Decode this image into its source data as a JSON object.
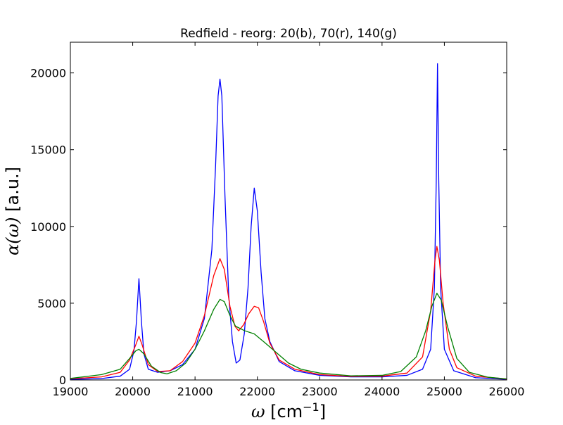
{
  "chart_data": {
    "type": "line",
    "title": "Redfield - reorg: 20(b), 70(r), 140(g)",
    "xlabel": {
      "sym": "ω",
      "unit": " [cm",
      "sup": "−1",
      "close": "]"
    },
    "ylabel": {
      "sym": "α(ω)",
      "unit": " [a.u.]"
    },
    "xlim": [
      19000,
      26000
    ],
    "ylim": [
      0,
      22000
    ],
    "xticks": [
      19000,
      20000,
      21000,
      22000,
      23000,
      24000,
      25000,
      26000
    ],
    "yticks": [
      0,
      5000,
      10000,
      15000,
      20000
    ],
    "grid": false,
    "legend": "none",
    "series": [
      {
        "color": "#0000ff",
        "points": [
          [
            19000,
            40
          ],
          [
            19500,
            90
          ],
          [
            19800,
            250
          ],
          [
            19950,
            700
          ],
          [
            20020,
            1900
          ],
          [
            20060,
            3800
          ],
          [
            20100,
            6600
          ],
          [
            20140,
            3800
          ],
          [
            20180,
            1700
          ],
          [
            20250,
            700
          ],
          [
            20400,
            500
          ],
          [
            20600,
            600
          ],
          [
            20800,
            1000
          ],
          [
            21000,
            2000
          ],
          [
            21150,
            4000
          ],
          [
            21270,
            8500
          ],
          [
            21330,
            14000
          ],
          [
            21370,
            18500
          ],
          [
            21400,
            19600
          ],
          [
            21430,
            18500
          ],
          [
            21480,
            12000
          ],
          [
            21540,
            5500
          ],
          [
            21600,
            2500
          ],
          [
            21660,
            1100
          ],
          [
            21720,
            1300
          ],
          [
            21790,
            3000
          ],
          [
            21850,
            6000
          ],
          [
            21900,
            10000
          ],
          [
            21950,
            12500
          ],
          [
            22000,
            11000
          ],
          [
            22060,
            7000
          ],
          [
            22120,
            4000
          ],
          [
            22200,
            2500
          ],
          [
            22350,
            1200
          ],
          [
            22600,
            600
          ],
          [
            23000,
            300
          ],
          [
            23500,
            200
          ],
          [
            24000,
            200
          ],
          [
            24400,
            300
          ],
          [
            24650,
            700
          ],
          [
            24780,
            2000
          ],
          [
            24840,
            6000
          ],
          [
            24870,
            13000
          ],
          [
            24890,
            20600
          ],
          [
            24910,
            13000
          ],
          [
            24940,
            6000
          ],
          [
            25000,
            2000
          ],
          [
            25150,
            600
          ],
          [
            25500,
            150
          ],
          [
            26000,
            40
          ]
        ]
      },
      {
        "color": "#ff0000",
        "points": [
          [
            19000,
            80
          ],
          [
            19500,
            200
          ],
          [
            19800,
            500
          ],
          [
            19950,
            1300
          ],
          [
            20050,
            2300
          ],
          [
            20100,
            2850
          ],
          [
            20150,
            2300
          ],
          [
            20250,
            1000
          ],
          [
            20400,
            550
          ],
          [
            20600,
            600
          ],
          [
            20800,
            1200
          ],
          [
            21000,
            2400
          ],
          [
            21150,
            4200
          ],
          [
            21300,
            6800
          ],
          [
            21400,
            7900
          ],
          [
            21470,
            7200
          ],
          [
            21560,
            4800
          ],
          [
            21640,
            3500
          ],
          [
            21700,
            3200
          ],
          [
            21780,
            3600
          ],
          [
            21860,
            4300
          ],
          [
            21950,
            4800
          ],
          [
            22020,
            4700
          ],
          [
            22100,
            3800
          ],
          [
            22200,
            2400
          ],
          [
            22350,
            1300
          ],
          [
            22600,
            700
          ],
          [
            23000,
            350
          ],
          [
            23500,
            230
          ],
          [
            24000,
            250
          ],
          [
            24400,
            450
          ],
          [
            24650,
            1500
          ],
          [
            24780,
            4500
          ],
          [
            24850,
            7800
          ],
          [
            24880,
            8700
          ],
          [
            24920,
            7800
          ],
          [
            24980,
            5000
          ],
          [
            25080,
            2000
          ],
          [
            25200,
            800
          ],
          [
            25500,
            250
          ],
          [
            26000,
            60
          ]
        ]
      },
      {
        "color": "#008000",
        "points": [
          [
            19000,
            100
          ],
          [
            19500,
            350
          ],
          [
            19800,
            700
          ],
          [
            19950,
            1400
          ],
          [
            20050,
            1900
          ],
          [
            20100,
            2000
          ],
          [
            20180,
            1700
          ],
          [
            20300,
            900
          ],
          [
            20450,
            480
          ],
          [
            20550,
            400
          ],
          [
            20700,
            600
          ],
          [
            20850,
            1100
          ],
          [
            21000,
            2000
          ],
          [
            21150,
            3200
          ],
          [
            21300,
            4600
          ],
          [
            21400,
            5250
          ],
          [
            21470,
            5100
          ],
          [
            21560,
            4200
          ],
          [
            21650,
            3500
          ],
          [
            21800,
            3200
          ],
          [
            21950,
            3000
          ],
          [
            22100,
            2500
          ],
          [
            22300,
            1800
          ],
          [
            22500,
            1100
          ],
          [
            22700,
            700
          ],
          [
            23000,
            450
          ],
          [
            23500,
            270
          ],
          [
            24000,
            300
          ],
          [
            24300,
            550
          ],
          [
            24550,
            1500
          ],
          [
            24700,
            3200
          ],
          [
            24800,
            4800
          ],
          [
            24880,
            5650
          ],
          [
            24950,
            5200
          ],
          [
            25050,
            3500
          ],
          [
            25200,
            1400
          ],
          [
            25400,
            500
          ],
          [
            25700,
            180
          ],
          [
            26000,
            70
          ]
        ]
      }
    ]
  }
}
